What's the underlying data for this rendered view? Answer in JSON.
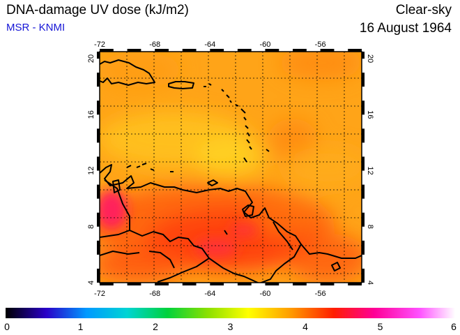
{
  "header": {
    "title": "DNA-damage UV dose (kJ/m2)",
    "source": "MSR - KNMI",
    "sky_condition": "Clear-sky",
    "date": "16 August 1964"
  },
  "map": {
    "lon_range": [
      -72,
      -53
    ],
    "lat_range": [
      4,
      20.5
    ],
    "lon_ticks": [
      -72,
      -68,
      -64,
      -60,
      -56
    ],
    "lat_ticks": [
      4,
      8,
      12,
      16,
      20
    ],
    "lon_tick_labels": [
      "-72",
      "-68",
      "-64",
      "-60",
      "-56"
    ],
    "lat_tick_labels": [
      "4",
      "8",
      "12",
      "16",
      "20"
    ],
    "grid": true,
    "coastline_color": "#000000",
    "field_colors": {
      "low": "#ffd21c",
      "mid": "#ff8c00",
      "high": "#ff2a1a",
      "peak": "#ff1e78"
    }
  },
  "colorbar": {
    "range": [
      0,
      6
    ],
    "tick_values": [
      0,
      1,
      2,
      3,
      4,
      5,
      6
    ],
    "tick_labels": [
      "0",
      "1",
      "2",
      "3",
      "4",
      "5",
      "6"
    ],
    "colors": [
      "#000000",
      "#2a00c8",
      "#0099ff",
      "#00d4d4",
      "#00d23c",
      "#8ce000",
      "#ffff00",
      "#ffa000",
      "#ff1e00",
      "#ff0096",
      "#ff50ff",
      "#ffffff"
    ]
  }
}
